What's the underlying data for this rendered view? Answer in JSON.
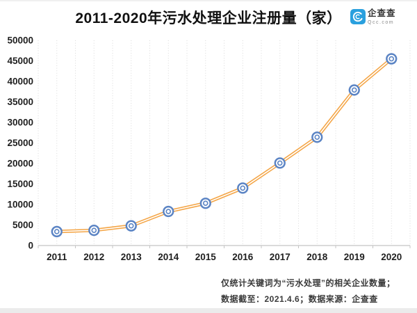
{
  "header": {
    "title": "2011-2020年污水处理企业注册量（家）",
    "logo": {
      "name": "企查查",
      "domain": "Qcc.com",
      "brand_color": "#2aa0de"
    }
  },
  "chart_data": {
    "type": "line",
    "title": "2011-2020年污水处理企业注册量（家）",
    "categories": [
      "2011",
      "2012",
      "2013",
      "2014",
      "2015",
      "2016",
      "2017",
      "2018",
      "2019",
      "2020"
    ],
    "values": [
      3400,
      3700,
      4800,
      8300,
      10300,
      14000,
      20100,
      26400,
      37900,
      45500
    ],
    "ylim": [
      0,
      50000
    ],
    "y_tick_interval": 5000,
    "y_tick_labels": [
      "0",
      "5000",
      "10000",
      "15000",
      "20000",
      "25000",
      "30000",
      "35000",
      "40000",
      "45000",
      "50000"
    ],
    "xlabel": "",
    "ylabel": "",
    "grid": "vertical-dotted",
    "legend": "none",
    "line_color": "#f4a546",
    "line_core_color": "#ffffff",
    "marker_color": "#5b84c4",
    "marker_fill": "#ffffff",
    "gridline_color": "#d9d9d9",
    "axis_color": "#c4c4c4",
    "tick_label_color": "#1f1f1f"
  },
  "footnotes": {
    "line1": "仅统计关键词为“污水处理”的相关企业数量；",
    "line2": "数据截至：2021.4.6；数据来源：企查查"
  }
}
